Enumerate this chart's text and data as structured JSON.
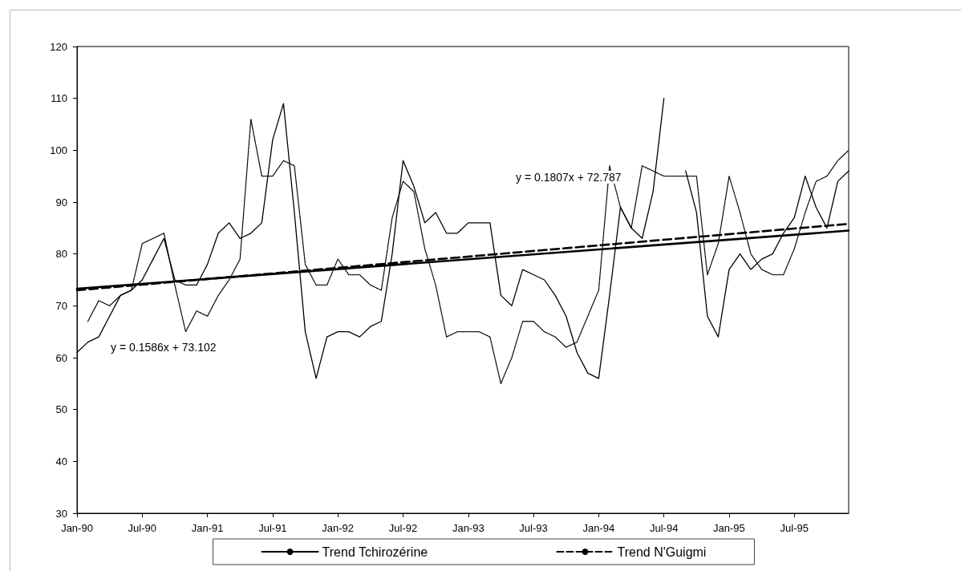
{
  "chart_data": {
    "type": "line",
    "categories": [
      "Jan-90",
      null,
      null,
      null,
      null,
      null,
      "Jul-90",
      null,
      null,
      null,
      null,
      null,
      "Jan-91",
      null,
      null,
      null,
      null,
      null,
      "Jul-91",
      null,
      null,
      null,
      null,
      null,
      "Jan-92",
      null,
      null,
      null,
      null,
      null,
      "Jul-92",
      null,
      null,
      null,
      null,
      null,
      "Jan-93",
      null,
      null,
      null,
      null,
      null,
      "Jul-93",
      null,
      null,
      null,
      null,
      null,
      "Jan-94",
      null,
      null,
      null,
      null,
      null,
      "Jul-94",
      null,
      null,
      null,
      null,
      null,
      "Jan-95",
      null,
      null,
      null,
      null,
      null,
      "Jul-95",
      null,
      null,
      null,
      null,
      null
    ],
    "series": [
      {
        "color": "#000000",
        "line_style": "solid",
        "values": [
          61,
          63,
          64,
          68,
          72,
          73,
          75,
          79,
          83,
          75,
          74,
          74,
          78,
          84,
          86,
          83,
          84,
          86,
          102,
          109,
          88,
          65,
          56,
          64,
          65,
          65,
          64,
          66,
          67,
          80,
          98,
          93,
          86,
          88,
          84,
          84,
          86,
          86,
          86,
          72,
          70,
          77,
          76,
          75,
          72,
          68,
          61,
          57,
          56,
          72,
          89,
          85,
          83,
          92,
          110,
          null,
          96,
          88,
          68,
          64,
          77,
          80,
          77,
          79,
          80,
          84,
          87,
          95,
          89,
          85,
          94,
          96
        ]
      },
      {
        "color": "#000000",
        "line_style": "dotted",
        "values": [
          null,
          67,
          71,
          70,
          72,
          73,
          82,
          83,
          84,
          74,
          65,
          69,
          68,
          72,
          75,
          79,
          106,
          95,
          95,
          98,
          97,
          78,
          74,
          74,
          79,
          76,
          76,
          74,
          73,
          87,
          94,
          92,
          81,
          74,
          64,
          65,
          65,
          65,
          64,
          55,
          60,
          67,
          67,
          65,
          64,
          62,
          63,
          68,
          73,
          97,
          89,
          85,
          97,
          96,
          95,
          95,
          95,
          95,
          76,
          82,
          95,
          88,
          80,
          77,
          76,
          76,
          81,
          88,
          94,
          95,
          98,
          100
        ]
      },
      {
        "name": "Trend Tchirozérine",
        "color": "#000000",
        "line_style": "solid",
        "values": [
          73.3,
          null,
          null,
          null,
          null,
          null,
          null,
          null,
          null,
          null,
          null,
          null,
          null,
          null,
          null,
          null,
          null,
          null,
          null,
          null,
          null,
          null,
          null,
          null,
          null,
          null,
          null,
          null,
          null,
          null,
          null,
          null,
          null,
          null,
          null,
          null,
          null,
          null,
          null,
          null,
          null,
          null,
          null,
          null,
          null,
          null,
          null,
          null,
          null,
          null,
          null,
          null,
          null,
          null,
          null,
          null,
          null,
          null,
          null,
          null,
          null,
          null,
          null,
          null,
          null,
          null,
          null,
          null,
          null,
          null,
          null,
          84.5
        ]
      },
      {
        "name": "Trend N'Guigmi",
        "color": "#000000",
        "line_style": "dashed",
        "values": [
          73.0,
          null,
          null,
          null,
          null,
          null,
          null,
          null,
          null,
          null,
          null,
          null,
          null,
          null,
          null,
          null,
          null,
          null,
          null,
          null,
          null,
          null,
          null,
          null,
          null,
          null,
          null,
          null,
          null,
          null,
          null,
          null,
          null,
          null,
          null,
          null,
          null,
          null,
          null,
          null,
          null,
          null,
          null,
          null,
          null,
          null,
          null,
          null,
          null,
          null,
          null,
          null,
          null,
          null,
          null,
          null,
          null,
          null,
          null,
          null,
          null,
          null,
          null,
          null,
          null,
          null,
          null,
          null,
          null,
          null,
          null,
          85.8
        ]
      }
    ],
    "ylim": [
      30,
      120
    ],
    "yticks": [
      30,
      40,
      50,
      60,
      70,
      80,
      90,
      100,
      110,
      120
    ],
    "grid": false,
    "legend": "bottom",
    "marker": "none",
    "annotations": [
      "y = 0.1586x + 73.102",
      "y = 0.1807x + 72.787"
    ]
  }
}
